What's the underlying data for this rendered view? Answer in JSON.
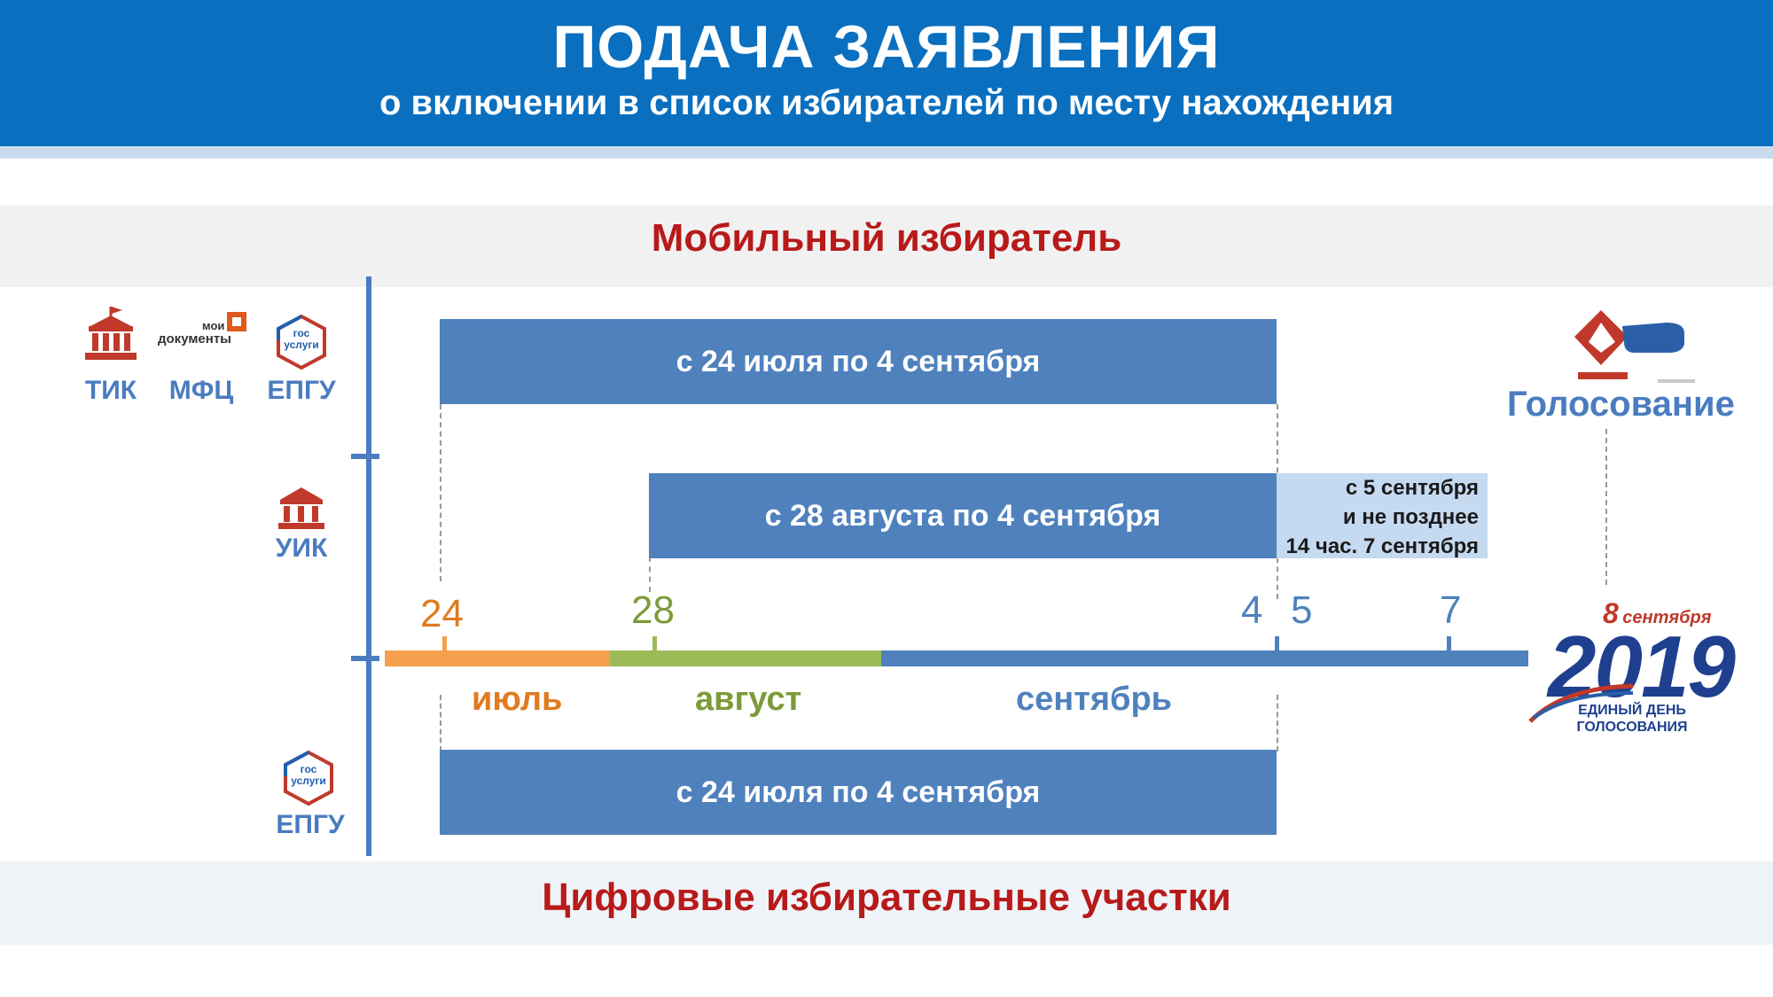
{
  "header": {
    "title": "ПОДАЧА ЗАЯВЛЕНИЯ",
    "subtitle": "о включении в список избирателей по месту нахождения"
  },
  "sections": {
    "mobile": "Мобильный избиратель",
    "digital": "Цифровые избирательные участки"
  },
  "sources": {
    "tik": "ТИК",
    "mfc": "МФЦ",
    "mfc_logo_top": "мои",
    "mfc_logo_main": "документы",
    "epgu": "ЕПГУ",
    "gosuslugi_top": "гос",
    "gosuslugi_bottom": "услуги",
    "uik": "УИК",
    "epgu_bottom": "ЕПГУ"
  },
  "bars": {
    "row1": "с 24 июля по 4 сентября",
    "row2": "с 28 августа по 4 сентября",
    "row2_extra": [
      "с 5 сентября",
      "и не позднее",
      "14 час. 7 сентября"
    ],
    "row3": "с 24 июля по 4 сентября"
  },
  "timeline": {
    "days": [
      "24",
      "28",
      "4",
      "5",
      "7"
    ],
    "months": [
      "июль",
      "август",
      "сентябрь"
    ]
  },
  "voting": {
    "label": "Голосование",
    "date_day": "8",
    "date_month": "сентября",
    "year": "2019",
    "caption_1": "ЕДИНЫЙ ДЕНЬ",
    "caption_2": "ГОЛОСОВАНИЯ"
  },
  "colors": {
    "header": "#0a6fbf",
    "accent_red": "#b81a1a",
    "bar_blue": "#4f81bd",
    "july": "#f4a04d",
    "august": "#9bbb59",
    "september": "#4f81bd"
  }
}
